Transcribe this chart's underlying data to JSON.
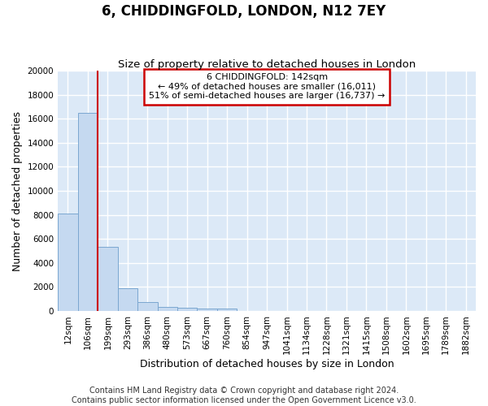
{
  "title": "6, CHIDDINGFOLD, LONDON, N12 7EY",
  "subtitle": "Size of property relative to detached houses in London",
  "xlabel": "Distribution of detached houses by size in London",
  "ylabel": "Number of detached properties",
  "bin_labels": [
    "12sqm",
    "106sqm",
    "199sqm",
    "293sqm",
    "386sqm",
    "480sqm",
    "573sqm",
    "667sqm",
    "760sqm",
    "854sqm",
    "947sqm",
    "1041sqm",
    "1134sqm",
    "1228sqm",
    "1321sqm",
    "1415sqm",
    "1508sqm",
    "1602sqm",
    "1695sqm",
    "1789sqm",
    "1882sqm"
  ],
  "bar_heights": [
    8100,
    16500,
    5300,
    1850,
    750,
    320,
    230,
    190,
    160,
    0,
    0,
    0,
    0,
    0,
    0,
    0,
    0,
    0,
    0,
    0,
    0
  ],
  "bar_color": "#c5d9f0",
  "bar_edge_color": "#7ba7d0",
  "background_color": "#dce9f7",
  "grid_color": "#ffffff",
  "red_line_x": 1.5,
  "annotation_text": "6 CHIDDINGFOLD: 142sqm\n← 49% of detached houses are smaller (16,011)\n51% of semi-detached houses are larger (16,737) →",
  "annotation_box_color": "#ffffff",
  "annotation_box_edge": "#cc0000",
  "red_line_color": "#cc0000",
  "ylim": [
    0,
    20000
  ],
  "yticks": [
    0,
    2000,
    4000,
    6000,
    8000,
    10000,
    12000,
    14000,
    16000,
    18000,
    20000
  ],
  "footnote": "Contains HM Land Registry data © Crown copyright and database right 2024.\nContains public sector information licensed under the Open Government Licence v3.0.",
  "title_fontsize": 12,
  "subtitle_fontsize": 9.5,
  "axis_label_fontsize": 9,
  "tick_fontsize": 7.5,
  "footnote_fontsize": 7
}
